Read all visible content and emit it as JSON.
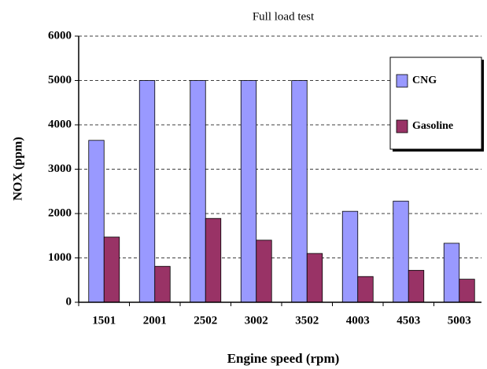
{
  "chart_data": {
    "type": "bar",
    "title": "Full load test",
    "x_label": "Engine speed (rpm)",
    "y_label": "NOX (ppm)",
    "categories": [
      "1501",
      "2001",
      "2502",
      "3002",
      "3502",
      "4003",
      "4503",
      "5003"
    ],
    "series": [
      {
        "name": "CNG",
        "color": "#9999ff",
        "values": [
          3650,
          5000,
          5000,
          5000,
          5000,
          2050,
          2280,
          1330
        ]
      },
      {
        "name": "Gasoline",
        "color": "#993366",
        "values": [
          1470,
          810,
          1890,
          1400,
          1100,
          580,
          720,
          520
        ]
      }
    ],
    "ylim": [
      0,
      6000
    ],
    "yticks": [
      0,
      1000,
      2000,
      3000,
      4000,
      5000,
      6000
    ],
    "grid": true,
    "legend": "upper right"
  }
}
